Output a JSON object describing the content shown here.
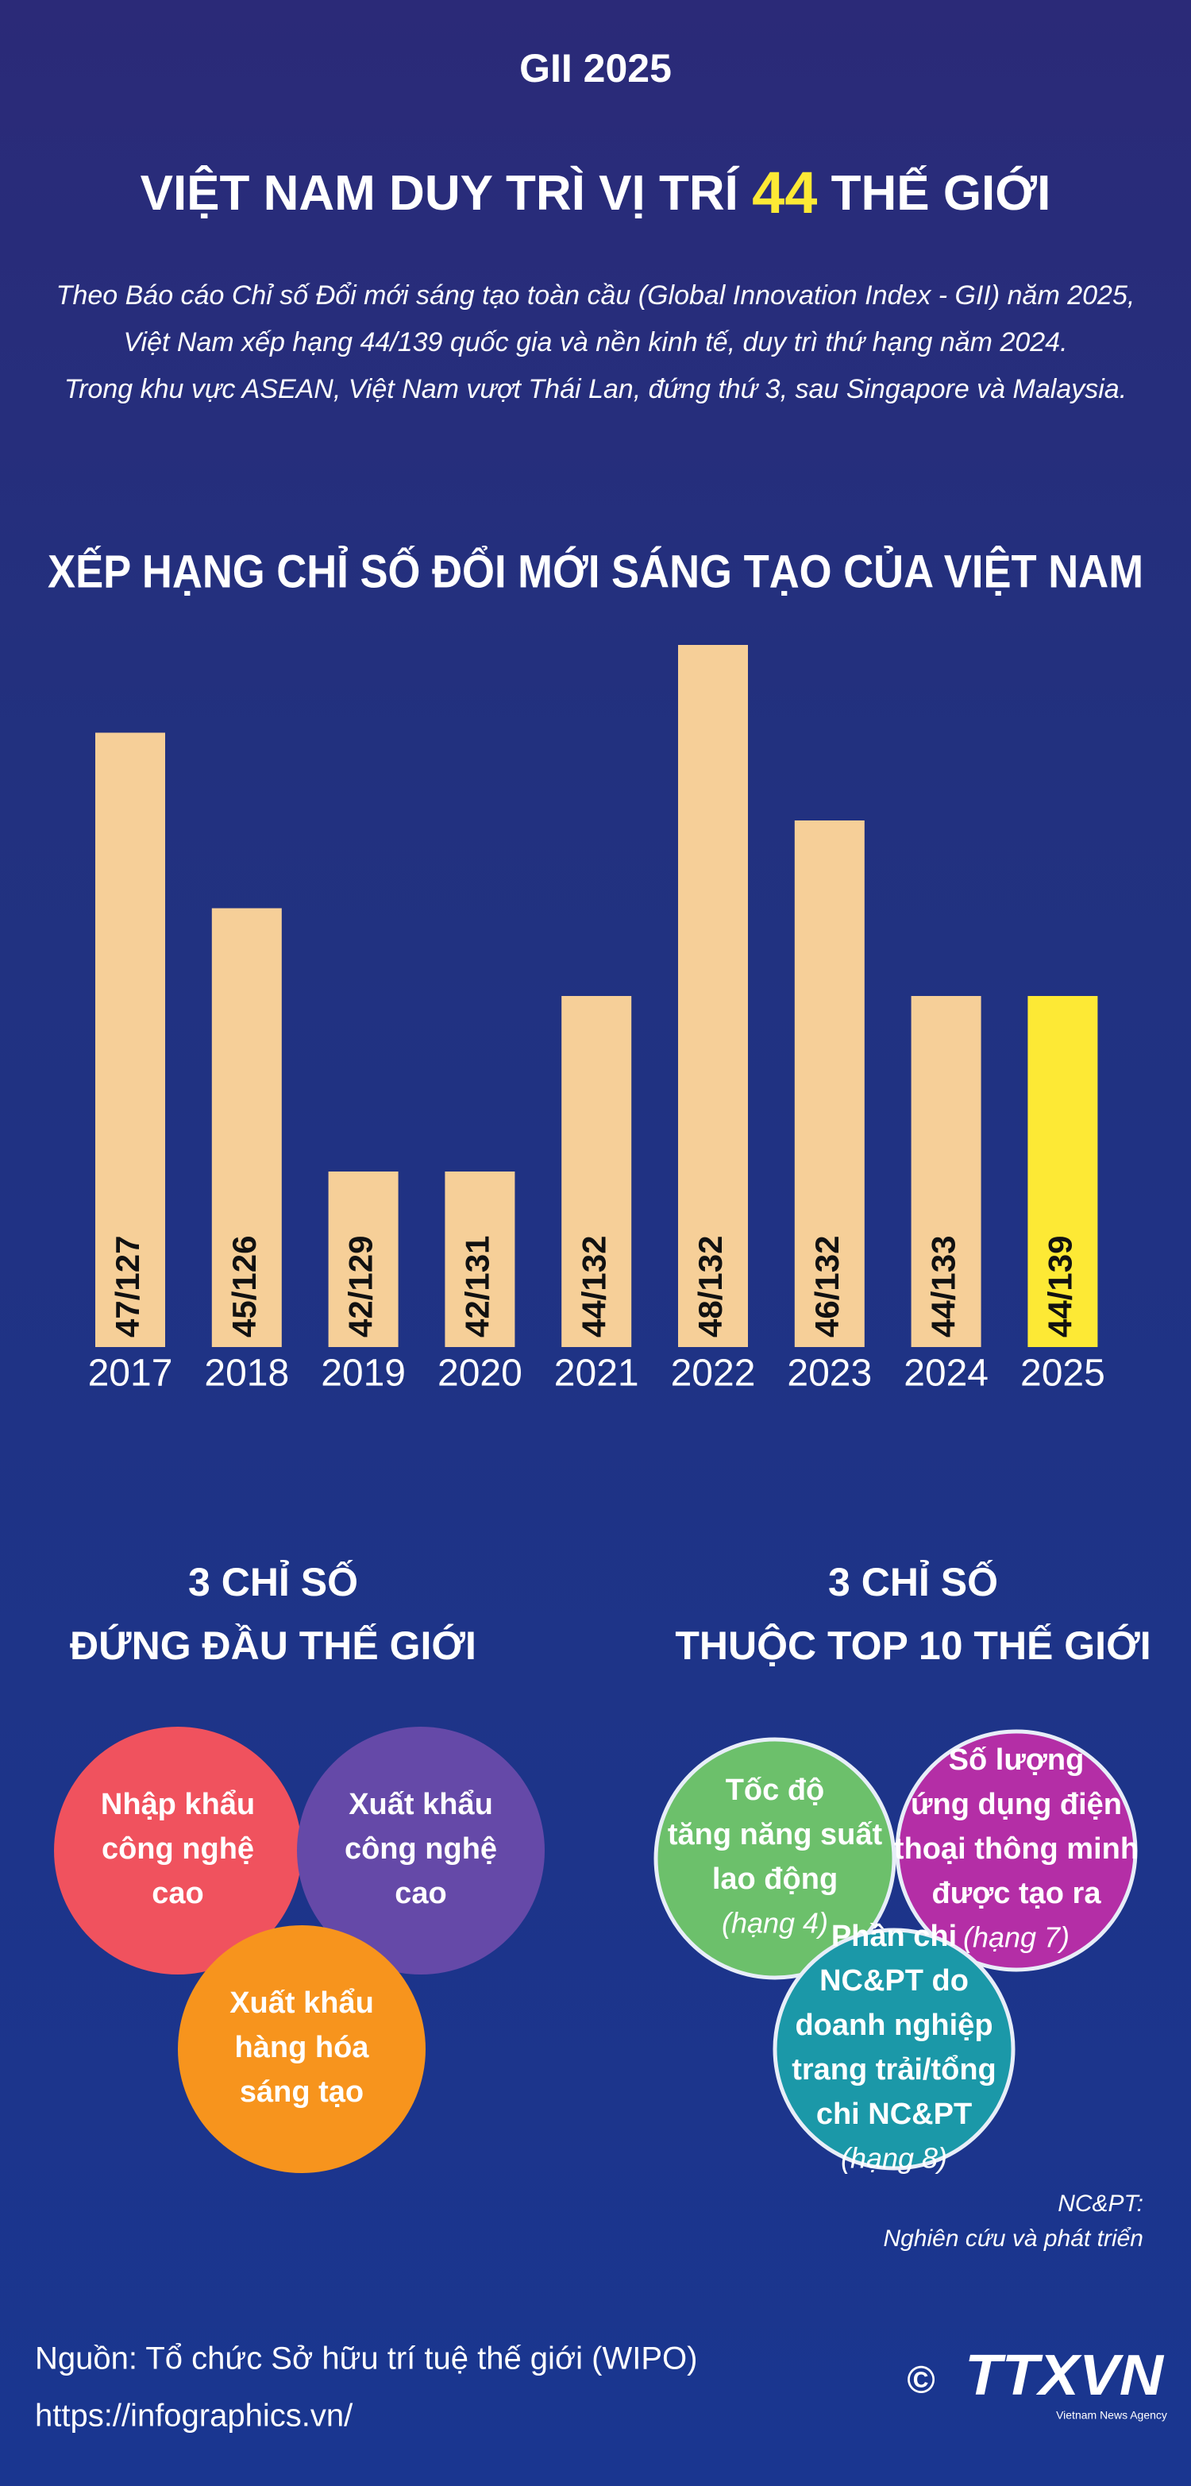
{
  "header": {
    "kicker": "GII 2025",
    "title_pre": "VIỆT NAM DUY TRÌ VỊ TRÍ",
    "title_highlight": "44",
    "title_post": "THẾ GIỚI",
    "intro": [
      "Theo Báo cáo Chỉ số Đổi mới sáng tạo toàn cầu (Global Innovation Index - GII) năm 2025,",
      "Việt Nam xếp hạng 44/139 quốc gia và nền kinh tế, duy trì thứ hạng năm 2024.",
      "Trong khu vực ASEAN, Việt Nam vượt Thái Lan, đứng thứ 3, sau Singapore và Malaysia."
    ]
  },
  "chart_data": {
    "type": "bar",
    "title": "XẾP HẠNG CHỈ SỐ ĐỔI MỚI SÁNG TẠO CỦA VIỆT NAM",
    "categories": [
      "2017",
      "2018",
      "2019",
      "2020",
      "2021",
      "2022",
      "2023",
      "2024",
      "2025"
    ],
    "values": [
      47,
      45,
      42,
      42,
      44,
      48,
      46,
      44,
      44
    ],
    "value_labels": [
      "47/127",
      "45/126",
      "42/129",
      "42/131",
      "44/132",
      "48/132",
      "46/132",
      "44/133",
      "44/139"
    ],
    "colors": [
      "#f6cf98",
      "#f6cf98",
      "#f6cf98",
      "#f6cf98",
      "#f6cf98",
      "#f6cf98",
      "#f6cf98",
      "#f6cf98",
      "#fde935"
    ],
    "ylim": [
      40,
      48
    ]
  },
  "left": {
    "heading": [
      "3 CHỈ SỐ",
      "ĐỨNG ĐẦU THẾ GIỚI"
    ],
    "circles": [
      {
        "lines": [
          "Nhập khẩu",
          "công nghệ",
          "cao"
        ],
        "color": "#f0525e"
      },
      {
        "lines": [
          "Xuất khẩu",
          "công nghệ",
          "cao"
        ],
        "color": "#6549a8"
      },
      {
        "lines": [
          "Xuất khẩu",
          "hàng hóa",
          "sáng tạo"
        ],
        "color": "#f7941d"
      }
    ]
  },
  "right": {
    "heading": [
      "3 CHỈ SỐ",
      "THUỘC TOP 10 THẾ GIỚI"
    ],
    "circles": [
      {
        "lines": [
          "Tốc độ",
          "tăng năng suất",
          "lao động"
        ],
        "rank": "(hạng 4)",
        "color": "#6cc06b"
      },
      {
        "lines": [
          "Số lượng",
          "ứng dụng điện",
          "thoại thông minh",
          "được tạo ra"
        ],
        "rank": "(hạng 7)",
        "color": "#b42ea6"
      },
      {
        "lines": [
          "Phần chi",
          "NC&PT do",
          "doanh nghiệp",
          "trang trải/tổng",
          "chi NC&PT"
        ],
        "rank": "(hạng 8)",
        "color": "#1b98a8"
      }
    ]
  },
  "note": {
    "abbr": "NC&PT:",
    "text": "Nghiên cứu và phát triển"
  },
  "footer": {
    "source": "Nguồn: Tổ chức Sở hữu trí tuệ thế giới (WIPO)",
    "url": "https://infographics.vn/",
    "copyright": "©",
    "logo": "TTXVN",
    "logo_sub": "Vietnam News Agency"
  }
}
